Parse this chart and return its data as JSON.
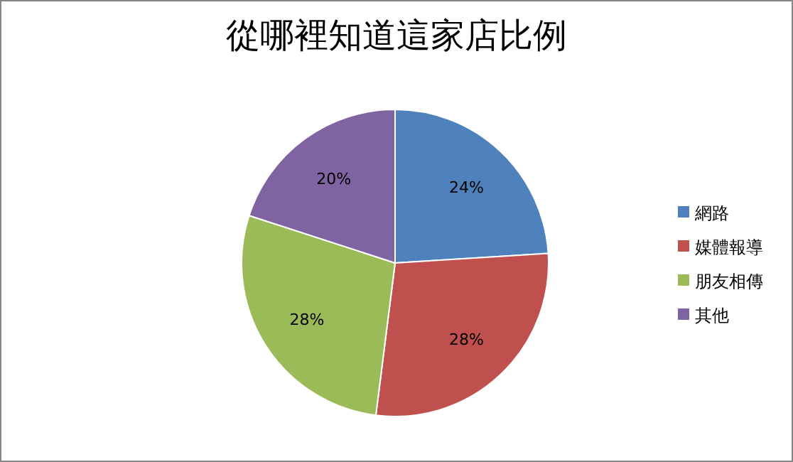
{
  "chart_data": {
    "type": "pie",
    "title": "從哪裡知道這家店比例",
    "categories": [
      "網路",
      "媒體報導",
      "朋友相傳",
      "其他"
    ],
    "values": [
      24,
      28,
      28,
      20
    ],
    "value_labels": [
      "24%",
      "28%",
      "28%",
      "20%"
    ],
    "colors": [
      "#4f81bd",
      "#c0504d",
      "#9bbb59",
      "#8064a2"
    ],
    "legend": "right"
  }
}
